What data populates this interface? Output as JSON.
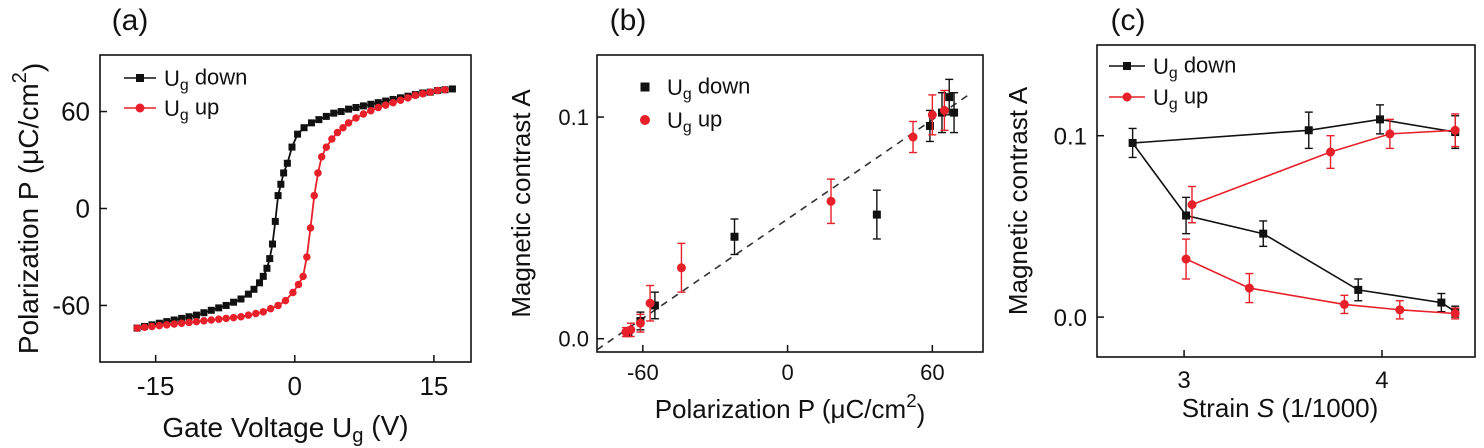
{
  "colors": {
    "down": "#111111",
    "up": "#e8202a",
    "axis": "#111111",
    "fit": "#333333"
  },
  "chart_data": [
    {
      "panel": "(a)",
      "type": "line",
      "xlabel": "Gate Voltage Ug (V)",
      "xlabel_main": "Gate Voltage U",
      "xlabel_sub": "g",
      "xlabel_tail": " (V)",
      "ylabel": "Polarization P (μC/cm2)",
      "ylabel_main": "Polarization P (μC/cm",
      "ylabel_sup": "2",
      "ylabel_tail": ")",
      "xlim": [
        -21,
        19
      ],
      "ylim": [
        -95,
        95
      ],
      "xticks": [
        -15,
        0,
        15
      ],
      "yticks": [
        -60,
        0,
        60
      ],
      "legend": [
        {
          "main": "U",
          "sub": "g",
          "tail": " down",
          "marker": "square",
          "series": "down"
        },
        {
          "main": "U",
          "sub": "g",
          "tail": " up",
          "marker": "circle",
          "series": "up"
        }
      ],
      "series": [
        {
          "name": "Ug down",
          "key": "down",
          "marker": "square",
          "x": [
            -17,
            -16.2,
            -15.4,
            -14.6,
            -13.8,
            -13,
            -12.2,
            -11.4,
            -10.6,
            -9.8,
            -9,
            -8.2,
            -7.4,
            -6.6,
            -5.8,
            -5,
            -4.4,
            -3.8,
            -3.4,
            -3,
            -2.7,
            -2.4,
            -2.1,
            -1.8,
            -1.5,
            -1.2,
            -0.8,
            -0.3,
            0.3,
            1,
            1.8,
            2.6,
            3.4,
            4.2,
            5,
            5.8,
            6.6,
            7.4,
            8.2,
            9,
            9.8,
            10.6,
            11.4,
            12.2,
            13,
            13.8,
            14.6,
            15.4,
            16.2,
            17
          ],
          "y": [
            -74,
            -73,
            -72,
            -71,
            -70,
            -69,
            -68,
            -67,
            -66,
            -64.5,
            -63,
            -61.5,
            -60,
            -58,
            -56,
            -53,
            -50,
            -46,
            -42,
            -37,
            -31,
            -22,
            -8,
            8,
            15,
            22,
            28,
            38,
            46,
            50,
            53,
            55,
            57,
            59,
            60,
            61.5,
            62.5,
            63.5,
            64.5,
            65.5,
            66.5,
            67.5,
            68.5,
            69.5,
            70.5,
            71.5,
            72,
            73,
            73.5,
            74
          ]
        },
        {
          "name": "Ug up",
          "key": "up",
          "marker": "circle",
          "x": [
            -17,
            -16.2,
            -15.4,
            -14.6,
            -13.8,
            -13,
            -12.2,
            -11.4,
            -10.6,
            -9.8,
            -9,
            -8.2,
            -7.4,
            -6.6,
            -5.8,
            -5,
            -4.2,
            -3.4,
            -2.6,
            -1.8,
            -1,
            -0.2,
            0.4,
            0.9,
            1.3,
            1.7,
            2.1,
            2.5,
            2.9,
            3.4,
            4,
            4.6,
            5.2,
            5.8,
            6.6,
            7.4,
            8.2,
            9,
            9.8,
            10.6,
            11.4,
            12.2,
            13,
            13.8,
            14.6,
            15.4,
            16.2
          ],
          "y": [
            -74,
            -73.5,
            -73,
            -72.5,
            -72,
            -71.5,
            -71,
            -70.5,
            -70,
            -69.5,
            -69,
            -68.5,
            -68,
            -67.5,
            -67,
            -66,
            -65,
            -64,
            -62,
            -60,
            -57,
            -52,
            -47,
            -42,
            -30,
            -12,
            8,
            22,
            32,
            38,
            43,
            47,
            50,
            53,
            56,
            58.5,
            60.5,
            62.5,
            64,
            65.5,
            67,
            68.5,
            70,
            71,
            72,
            73,
            73.5
          ]
        }
      ]
    },
    {
      "panel": "(b)",
      "type": "scatter",
      "xlabel": "Polarization P (μC/cm2)",
      "xlabel_main": "Polarization P (μC/cm",
      "xlabel_sup": "2",
      "xlabel_tail": ")",
      "ylabel": "Magnetic contrast A",
      "xlim": [
        -79,
        81
      ],
      "ylim": [
        -0.006,
        0.128
      ],
      "xticks": [
        -60,
        0,
        60
      ],
      "yticks": [
        0.0,
        0.1
      ],
      "ytick_labels": [
        "0.0",
        "0.1"
      ],
      "legend": [
        {
          "main": "U",
          "sub": "g",
          "tail": " down",
          "marker": "square",
          "series": "down"
        },
        {
          "main": "U",
          "sub": "g",
          "tail": " up",
          "marker": "circle",
          "series": "up"
        }
      ],
      "fit_line": {
        "style": "dashed",
        "x": [
          -79,
          75
        ],
        "y": [
          -0.005,
          0.11
        ]
      },
      "series": [
        {
          "name": "Ug down",
          "key": "down",
          "marker": "square",
          "x": [
            -66,
            -61,
            -55,
            -22,
            37,
            59,
            64,
            67,
            69
          ],
          "y": [
            0.003,
            0.008,
            0.015,
            0.046,
            0.056,
            0.096,
            0.102,
            0.109,
            0.102
          ],
          "err": [
            0.002,
            0.004,
            0.006,
            0.008,
            0.011,
            0.007,
            0.009,
            0.008,
            0.009
          ]
        },
        {
          "name": "Ug up",
          "key": "up",
          "marker": "circle",
          "x": [
            -67,
            -65,
            -61,
            -57,
            -44,
            18,
            52,
            60,
            65
          ],
          "y": [
            0.003,
            0.004,
            0.007,
            0.016,
            0.032,
            0.062,
            0.091,
            0.101,
            0.103
          ],
          "err": [
            0.002,
            0.003,
            0.004,
            0.008,
            0.011,
            0.01,
            0.007,
            0.009,
            0.009
          ]
        }
      ]
    },
    {
      "panel": "(c)",
      "type": "line",
      "xlabel": "Strain S (1/1000)",
      "xlabel_main": "Strain ",
      "xlabel_italic": "S",
      "xlabel_tail": " (1/1000)",
      "ylabel": "Magnetic contrast A",
      "xlim": [
        2.56,
        4.47
      ],
      "ylim": [
        -0.022,
        0.15
      ],
      "xticks": [
        3,
        4
      ],
      "yticks": [
        0.0,
        0.1
      ],
      "ytick_labels": [
        "0.0",
        "0.1"
      ],
      "legend": [
        {
          "main": "U",
          "sub": "g",
          "tail": " down",
          "marker": "square",
          "series": "down"
        },
        {
          "main": "U",
          "sub": "g",
          "tail": " up",
          "marker": "circle",
          "series": "up"
        }
      ],
      "series": [
        {
          "name": "Ug down",
          "key": "down",
          "marker": "square",
          "x": [
            2.74,
            3.63,
            3.99,
            4.37,
            3.01,
            3.4,
            3.88,
            4.3,
            4.37
          ],
          "y": [
            0.096,
            0.103,
            0.109,
            0.102,
            0.056,
            0.046,
            0.015,
            0.008,
            0.003
          ],
          "err": [
            0.008,
            0.01,
            0.008,
            0.009,
            0.01,
            0.007,
            0.006,
            0.005,
            0.003
          ],
          "order": [
            [
              0,
              1,
              2,
              3
            ],
            [
              0,
              4,
              5,
              6,
              7,
              8
            ]
          ]
        },
        {
          "name": "Ug up",
          "key": "up",
          "marker": "circle",
          "x": [
            3.04,
            3.74,
            4.04,
            4.37,
            3.01,
            3.33,
            3.81,
            4.09,
            4.37
          ],
          "y": [
            0.062,
            0.091,
            0.101,
            0.103,
            0.032,
            0.016,
            0.007,
            0.004,
            0.002
          ],
          "err": [
            0.01,
            0.009,
            0.008,
            0.009,
            0.011,
            0.008,
            0.005,
            0.005,
            0.003
          ],
          "order": [
            [
              0,
              1,
              2,
              3
            ],
            [
              4,
              5,
              6,
              7,
              8
            ]
          ]
        }
      ]
    }
  ]
}
